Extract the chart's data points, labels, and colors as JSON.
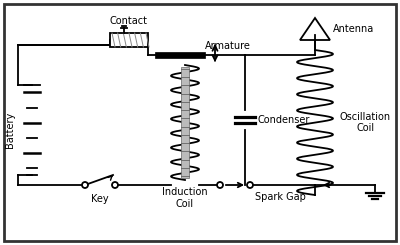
{
  "labels": {
    "battery": "Battery",
    "key": "Key",
    "contact": "Contact",
    "armature": "Armature",
    "induction_coil": "Induction\nCoil",
    "condenser": "Condenser",
    "spark_gap": "Spark Gap",
    "oscillation_coil": "Oscillation\nCoil",
    "antenna": "Antenna"
  },
  "figsize": [
    4.0,
    2.45
  ],
  "dpi": 100,
  "lw": 1.3,
  "fs": 7.0
}
